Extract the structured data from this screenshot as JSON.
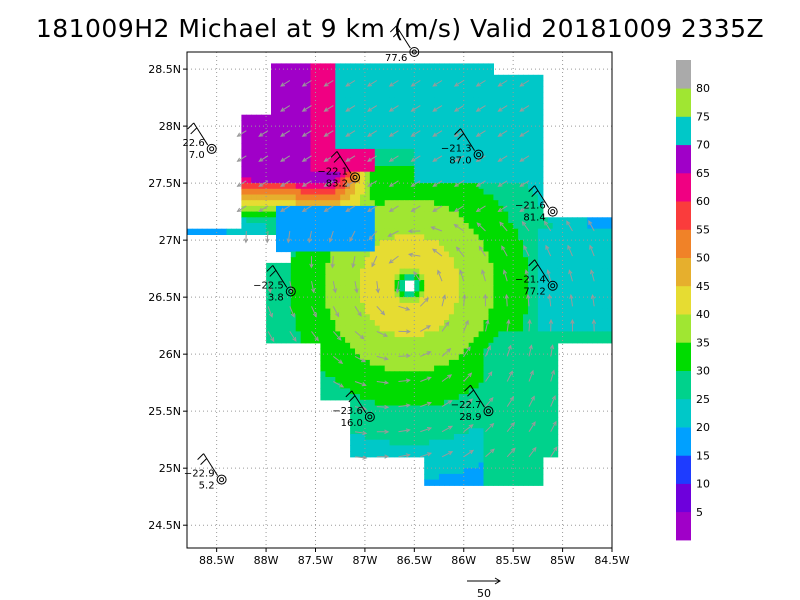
{
  "title": "181009H2 Michael at 9 km (m/s) Valid 20181009  2335Z",
  "map": {
    "lon_min": -88.8,
    "lon_max": -84.5,
    "lat_min": 24.3,
    "lat_max": 28.65,
    "lat_ticks": [
      {
        "v": 28.5,
        "label": "28.5N"
      },
      {
        "v": 28,
        "label": "28N"
      },
      {
        "v": 27.5,
        "label": "27.5N"
      },
      {
        "v": 27,
        "label": "27N"
      },
      {
        "v": 26.5,
        "label": "26.5N"
      },
      {
        "v": 26,
        "label": "26N"
      },
      {
        "v": 25.5,
        "label": "25.5N"
      },
      {
        "v": 25,
        "label": "25N"
      },
      {
        "v": 24.5,
        "label": "24.5N"
      }
    ],
    "lon_ticks": [
      {
        "v": -88.5,
        "label": "88.5W"
      },
      {
        "v": -88,
        "label": "88W"
      },
      {
        "v": -87.5,
        "label": "87.5W"
      },
      {
        "v": -87,
        "label": "87W"
      },
      {
        "v": -86.5,
        "label": "86.5W"
      },
      {
        "v": -86,
        "label": "86W"
      },
      {
        "v": -85.5,
        "label": "85.5W"
      },
      {
        "v": -85,
        "label": "85W"
      },
      {
        "v": -84.5,
        "label": "84.5W"
      }
    ],
    "center": {
      "lon": -86.55,
      "lat": 26.6
    }
  },
  "colorbar": {
    "labels": [
      "5",
      "10",
      "15",
      "20",
      "25",
      "30",
      "35",
      "40",
      "45",
      "50",
      "55",
      "60",
      "65",
      "70",
      "75",
      "80"
    ],
    "colors": [
      "#a000c8",
      "#6e00dc",
      "#1e3cff",
      "#00a0ff",
      "#00c8c8",
      "#00d28c",
      "#00dc00",
      "#a0e632",
      "#e6dc32",
      "#e6af2d",
      "#f08228",
      "#fa3c3c",
      "#f00082",
      "#a000c8",
      "#00c8c8",
      "#a0e632",
      "#aaaaaa"
    ]
  },
  "scale": {
    "label": "50"
  },
  "stations": [
    {
      "lon": -86.5,
      "lat": 28.65,
      "top": "",
      "bottom": "77.6",
      "side": "left"
    },
    {
      "lon": -88.55,
      "lat": 27.8,
      "top": "22.6",
      "bottom": "7.0",
      "side": "left"
    },
    {
      "lon": -87.1,
      "lat": 27.55,
      "top": "−22.1",
      "bottom": "83.2",
      "side": "left"
    },
    {
      "lon": -85.85,
      "lat": 27.75,
      "top": "−21.3",
      "bottom": "87.0",
      "side": "left"
    },
    {
      "lon": -85.1,
      "lat": 27.25,
      "top": "−21.6",
      "bottom": "81.4",
      "side": "left"
    },
    {
      "lon": -87.75,
      "lat": 26.55,
      "top": "−22.5",
      "bottom": "3.8",
      "side": "left"
    },
    {
      "lon": -85.1,
      "lat": 26.6,
      "top": "−21.4",
      "bottom": "77.2",
      "side": "left"
    },
    {
      "lon": -86.95,
      "lat": 25.45,
      "top": "−23.6",
      "bottom": "16.0",
      "side": "left"
    },
    {
      "lon": -85.75,
      "lat": 25.5,
      "top": "−22.7",
      "bottom": "28.9",
      "side": "left"
    },
    {
      "lon": -88.45,
      "lat": 24.9,
      "top": "−22.9",
      "bottom": "5.2",
      "side": "left"
    }
  ]
}
